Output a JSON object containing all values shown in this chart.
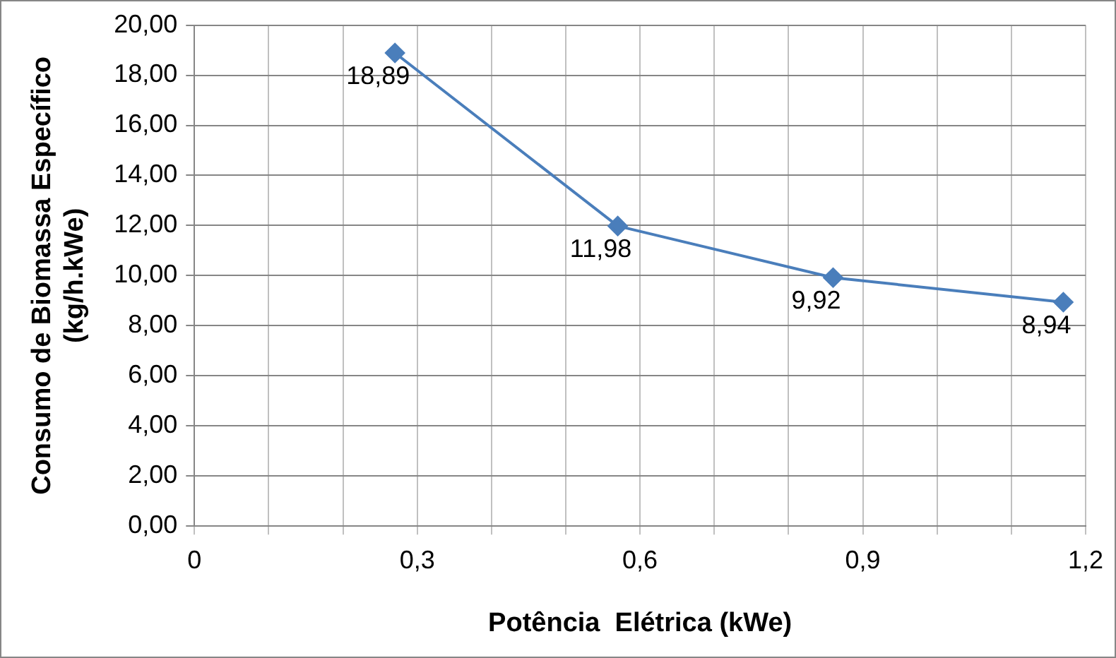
{
  "chart_data": {
    "type": "line",
    "xlabel": "Potência  Elétrica (kWe)",
    "ylabel": "Consumo de Biomassa Específico (kg/h.kWe)",
    "x": [
      0.27,
      0.57,
      0.86,
      1.17
    ],
    "series": [
      {
        "color": "#4a7ebb",
        "values": [
          18.89,
          11.98,
          9.92,
          8.94
        ],
        "value_labels": [
          "18,89",
          "11,98",
          "9,92",
          "8,94"
        ]
      }
    ],
    "xlim": [
      0,
      1.2
    ],
    "xticks": [
      0,
      {
        "value": 0.1,
        "label": null
      },
      {
        "value": 0.2,
        "label": null
      },
      {
        "value": 0.3,
        "label": "0,3"
      },
      {
        "value": 0.4,
        "label": null
      },
      {
        "value": 0.5,
        "label": null
      },
      {
        "value": 0.6,
        "label": "0,6"
      },
      {
        "value": 0.7,
        "label": null
      },
      {
        "value": 0.8,
        "label": null
      },
      {
        "value": 0.9,
        "label": "0,9"
      },
      {
        "value": 1.0,
        "label": null
      },
      {
        "value": 1.1,
        "label": null
      },
      {
        "value": 1.2,
        "label": "1,2"
      }
    ],
    "ylim": [
      0,
      20
    ],
    "yticks": [
      {
        "value": 0,
        "label": "0,00"
      },
      {
        "value": 2,
        "label": "2,00"
      },
      {
        "value": 4,
        "label": "4,00"
      },
      {
        "value": 6,
        "label": "6,00"
      },
      {
        "value": 8,
        "label": "8,00"
      },
      {
        "value": 10,
        "label": "10,00"
      },
      {
        "value": 12,
        "label": "12,00"
      },
      {
        "value": 14,
        "label": "14,00"
      },
      {
        "value": 16,
        "label": "16,00"
      },
      {
        "value": 18,
        "label": "18,00"
      },
      {
        "value": 20,
        "label": "20,00"
      }
    ],
    "grid": true,
    "legend": false,
    "marker": "diamond",
    "line_style": "solid"
  }
}
